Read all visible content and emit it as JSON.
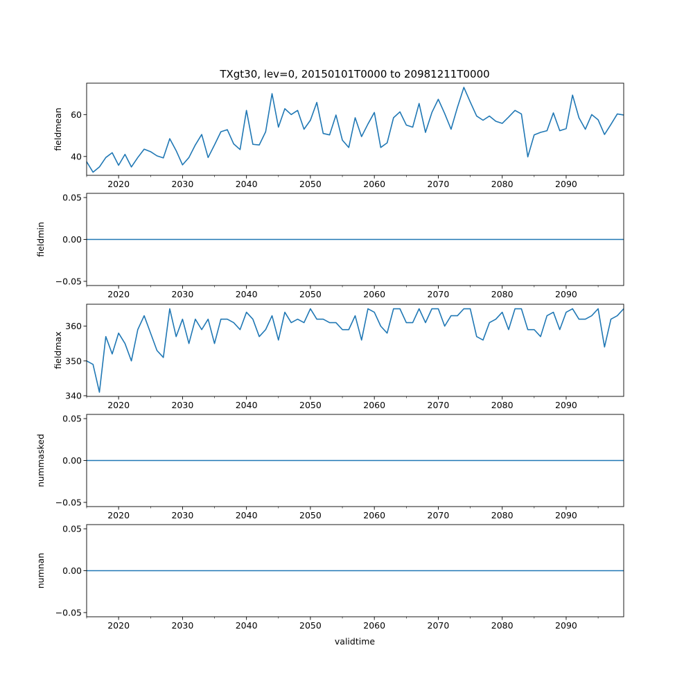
{
  "figure_title": "TXgt30, lev=0, 20150101T0000 to 20981211T0000",
  "xlabel": "validtime",
  "line_color": "#1f77b4",
  "chart_data": [
    {
      "type": "line",
      "ylabel": "fieldmean",
      "xlim": [
        2015,
        2099
      ],
      "ylim": [
        31,
        75
      ],
      "xticks": [
        2020,
        2030,
        2040,
        2050,
        2060,
        2070,
        2080,
        2090
      ],
      "yticks": [
        40,
        60
      ],
      "x_start": 2015,
      "values": [
        37.5,
        32.5,
        35,
        39.5,
        41.8,
        35.8,
        41,
        35,
        39.5,
        43.5,
        42.3,
        40.3,
        39.3,
        48.5,
        42.8,
        36,
        39.5,
        45.5,
        50.5,
        39.5,
        45.5,
        51.8,
        52.8,
        46,
        43.3,
        62,
        45.8,
        45.5,
        51.8,
        70,
        54,
        62.8,
        60,
        62,
        53,
        57.3,
        65.8,
        51,
        50.3,
        59.8,
        47.8,
        44.3,
        58.5,
        49.5,
        55.5,
        61,
        44.3,
        46.5,
        58.5,
        61.3,
        55,
        54,
        65.3,
        51.5,
        61,
        67.3,
        60.5,
        53,
        63.5,
        73,
        66,
        59.3,
        57.3,
        59.3,
        56.8,
        55.8,
        58.8,
        62,
        60.3,
        39.8,
        50.3,
        51.5,
        52.3,
        60.8,
        52.3,
        53.3,
        69.3,
        58.5,
        53,
        60,
        57.5,
        50.5,
        55.3,
        60.3,
        59.8
      ]
    },
    {
      "type": "line",
      "ylabel": "fieldmin",
      "xlim": [
        2015,
        2099
      ],
      "ylim": [
        -0.055,
        0.055
      ],
      "xticks": [
        2020,
        2030,
        2040,
        2050,
        2060,
        2070,
        2080,
        2090
      ],
      "yticks": [
        -0.05,
        0.0,
        0.05
      ],
      "ytick_labels": [
        "−0.05",
        "0.00",
        "0.05"
      ],
      "x_start": 2015,
      "constant": 0
    },
    {
      "type": "line",
      "ylabel": "fieldmax",
      "xlim": [
        2015,
        2099
      ],
      "ylim": [
        339.8,
        366.3
      ],
      "xticks": [
        2020,
        2030,
        2040,
        2050,
        2060,
        2070,
        2080,
        2090
      ],
      "yticks": [
        340,
        350,
        360
      ],
      "x_start": 2015,
      "values": [
        350,
        349,
        341,
        357,
        352,
        358,
        355,
        350,
        359,
        363,
        358,
        353,
        351,
        365,
        357,
        362,
        355,
        362,
        359,
        362,
        355,
        362,
        362,
        361,
        359,
        364,
        362,
        357,
        359,
        363,
        356,
        364,
        361,
        362,
        361,
        365,
        362,
        362,
        361,
        361,
        359,
        359,
        363,
        356,
        365,
        364,
        360,
        358,
        365,
        365,
        361,
        361,
        365,
        361,
        365,
        365,
        360,
        363,
        363,
        365,
        365,
        357,
        356,
        361,
        362,
        364,
        359,
        365,
        365,
        359,
        359,
        357,
        363,
        364,
        359,
        364,
        365,
        362,
        362,
        363,
        365,
        354,
        362,
        363,
        365
      ]
    },
    {
      "type": "line",
      "ylabel": "nummasked",
      "xlim": [
        2015,
        2099
      ],
      "ylim": [
        -0.055,
        0.055
      ],
      "xticks": [
        2020,
        2030,
        2040,
        2050,
        2060,
        2070,
        2080,
        2090
      ],
      "yticks": [
        -0.05,
        0.0,
        0.05
      ],
      "ytick_labels": [
        "−0.05",
        "0.00",
        "0.05"
      ],
      "x_start": 2015,
      "constant": 0
    },
    {
      "type": "line",
      "ylabel": "numnan",
      "xlim": [
        2015,
        2099
      ],
      "ylim": [
        -0.055,
        0.055
      ],
      "xticks": [
        2020,
        2030,
        2040,
        2050,
        2060,
        2070,
        2080,
        2090
      ],
      "yticks": [
        -0.05,
        0.0,
        0.05
      ],
      "ytick_labels": [
        "−0.05",
        "0.00",
        "0.05"
      ],
      "x_start": 2015,
      "constant": 0
    }
  ]
}
